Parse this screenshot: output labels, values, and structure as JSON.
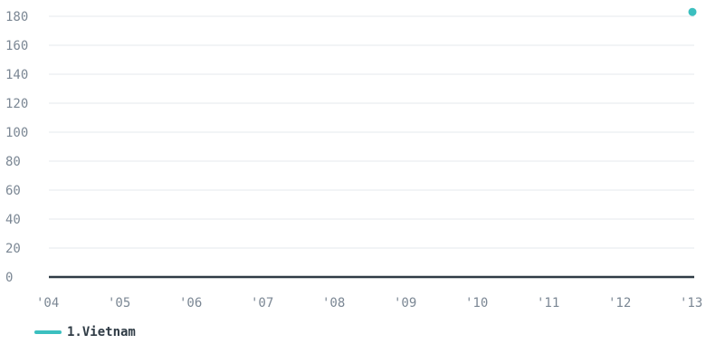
{
  "chart_data": {
    "type": "line",
    "x_ticks": [
      "'04",
      "'05",
      "'06",
      "'07",
      "'08",
      "'09",
      "'10",
      "'11",
      "'12",
      "'13"
    ],
    "y_ticks": [
      "0",
      "20",
      "40",
      "60",
      "80",
      "100",
      "120",
      "140",
      "160",
      "180"
    ],
    "ylim": [
      0,
      180
    ],
    "grid": true,
    "legend_position": "bottom-left",
    "series": [
      {
        "name": "1.Vietnam",
        "color": "#3bbfbf",
        "points": [
          {
            "x": "'13",
            "y": 183
          }
        ]
      }
    ]
  },
  "colors": {
    "series": "#3bbfbf",
    "baseline": "#2f3b45",
    "gridline": "#e6e9ec",
    "tick_text": "#7b8794"
  }
}
